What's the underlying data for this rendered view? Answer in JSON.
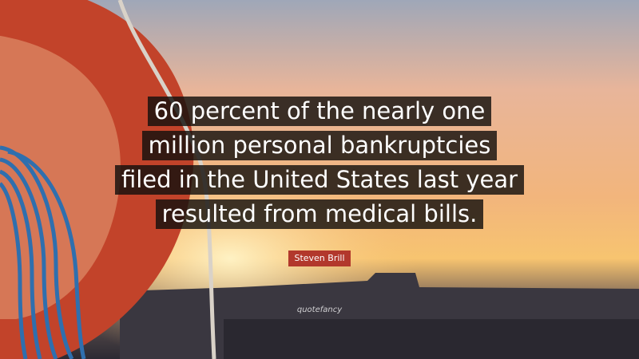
{
  "quote": {
    "lines": [
      "60 percent of the nearly one",
      "million personal bankruptcies",
      "filed in the United States last year",
      "resulted from medical bills."
    ],
    "author": "Steven Brill"
  },
  "watermark": "quotefancy"
}
